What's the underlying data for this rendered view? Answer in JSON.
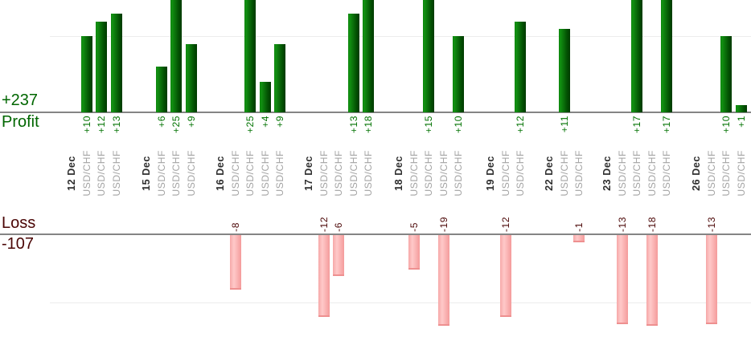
{
  "chart_data": {
    "type": "bar",
    "title": "",
    "symbol": "USD/CHF",
    "legend_position": "none",
    "grid": "faint horizontal gridlines at +10 and -10",
    "profit": {
      "axis_label": "Profit",
      "total_label": "+237",
      "total": 237,
      "gridline_value": 10,
      "clip_max": 14.8
    },
    "loss": {
      "axis_label": "Loss",
      "total_label": "-107",
      "total": -107,
      "gridline_value": -10,
      "clip_min": -13.3
    },
    "groups": [
      {
        "date": "12 Dec",
        "symbol": "USD/CHF",
        "trades": [
          10,
          12,
          13
        ]
      },
      {
        "date": "15 Dec",
        "symbol": "USD/CHF",
        "trades": [
          6,
          25,
          9
        ]
      },
      {
        "date": "16 Dec",
        "symbol": "USD/CHF",
        "trades": [
          -8,
          25,
          4,
          9
        ]
      },
      {
        "date": "17 Dec",
        "symbol": "USD/CHF",
        "trades": [
          -12,
          -6,
          13,
          18
        ]
      },
      {
        "date": "18 Dec",
        "symbol": "USD/CHF",
        "trades": [
          -5,
          15,
          -19,
          10
        ]
      },
      {
        "date": "19 Dec",
        "symbol": "USD/CHF",
        "trades": [
          -12,
          12
        ]
      },
      {
        "date": "22 Dec",
        "symbol": "USD/CHF",
        "trades": [
          11,
          -1
        ]
      },
      {
        "date": "23 Dec",
        "symbol": "USD/CHF",
        "trades": [
          -13,
          17,
          -18,
          17
        ]
      },
      {
        "date": "26 Dec",
        "symbol": "USD/CHF",
        "trades": [
          -13,
          10,
          1
        ]
      }
    ],
    "colors": {
      "profit_bar": "#0b7d0b",
      "profit_bar_dark": "#003a00",
      "profit_text": "#006600",
      "loss_bar": "#ffc9c9",
      "loss_bar_edge": "#ee9090",
      "loss_text": "#4a0505",
      "date_text": "#2e2e2e",
      "symbol_text": "#a3a3a3",
      "axis_line": "#858585",
      "gridline": "#ececec"
    }
  }
}
